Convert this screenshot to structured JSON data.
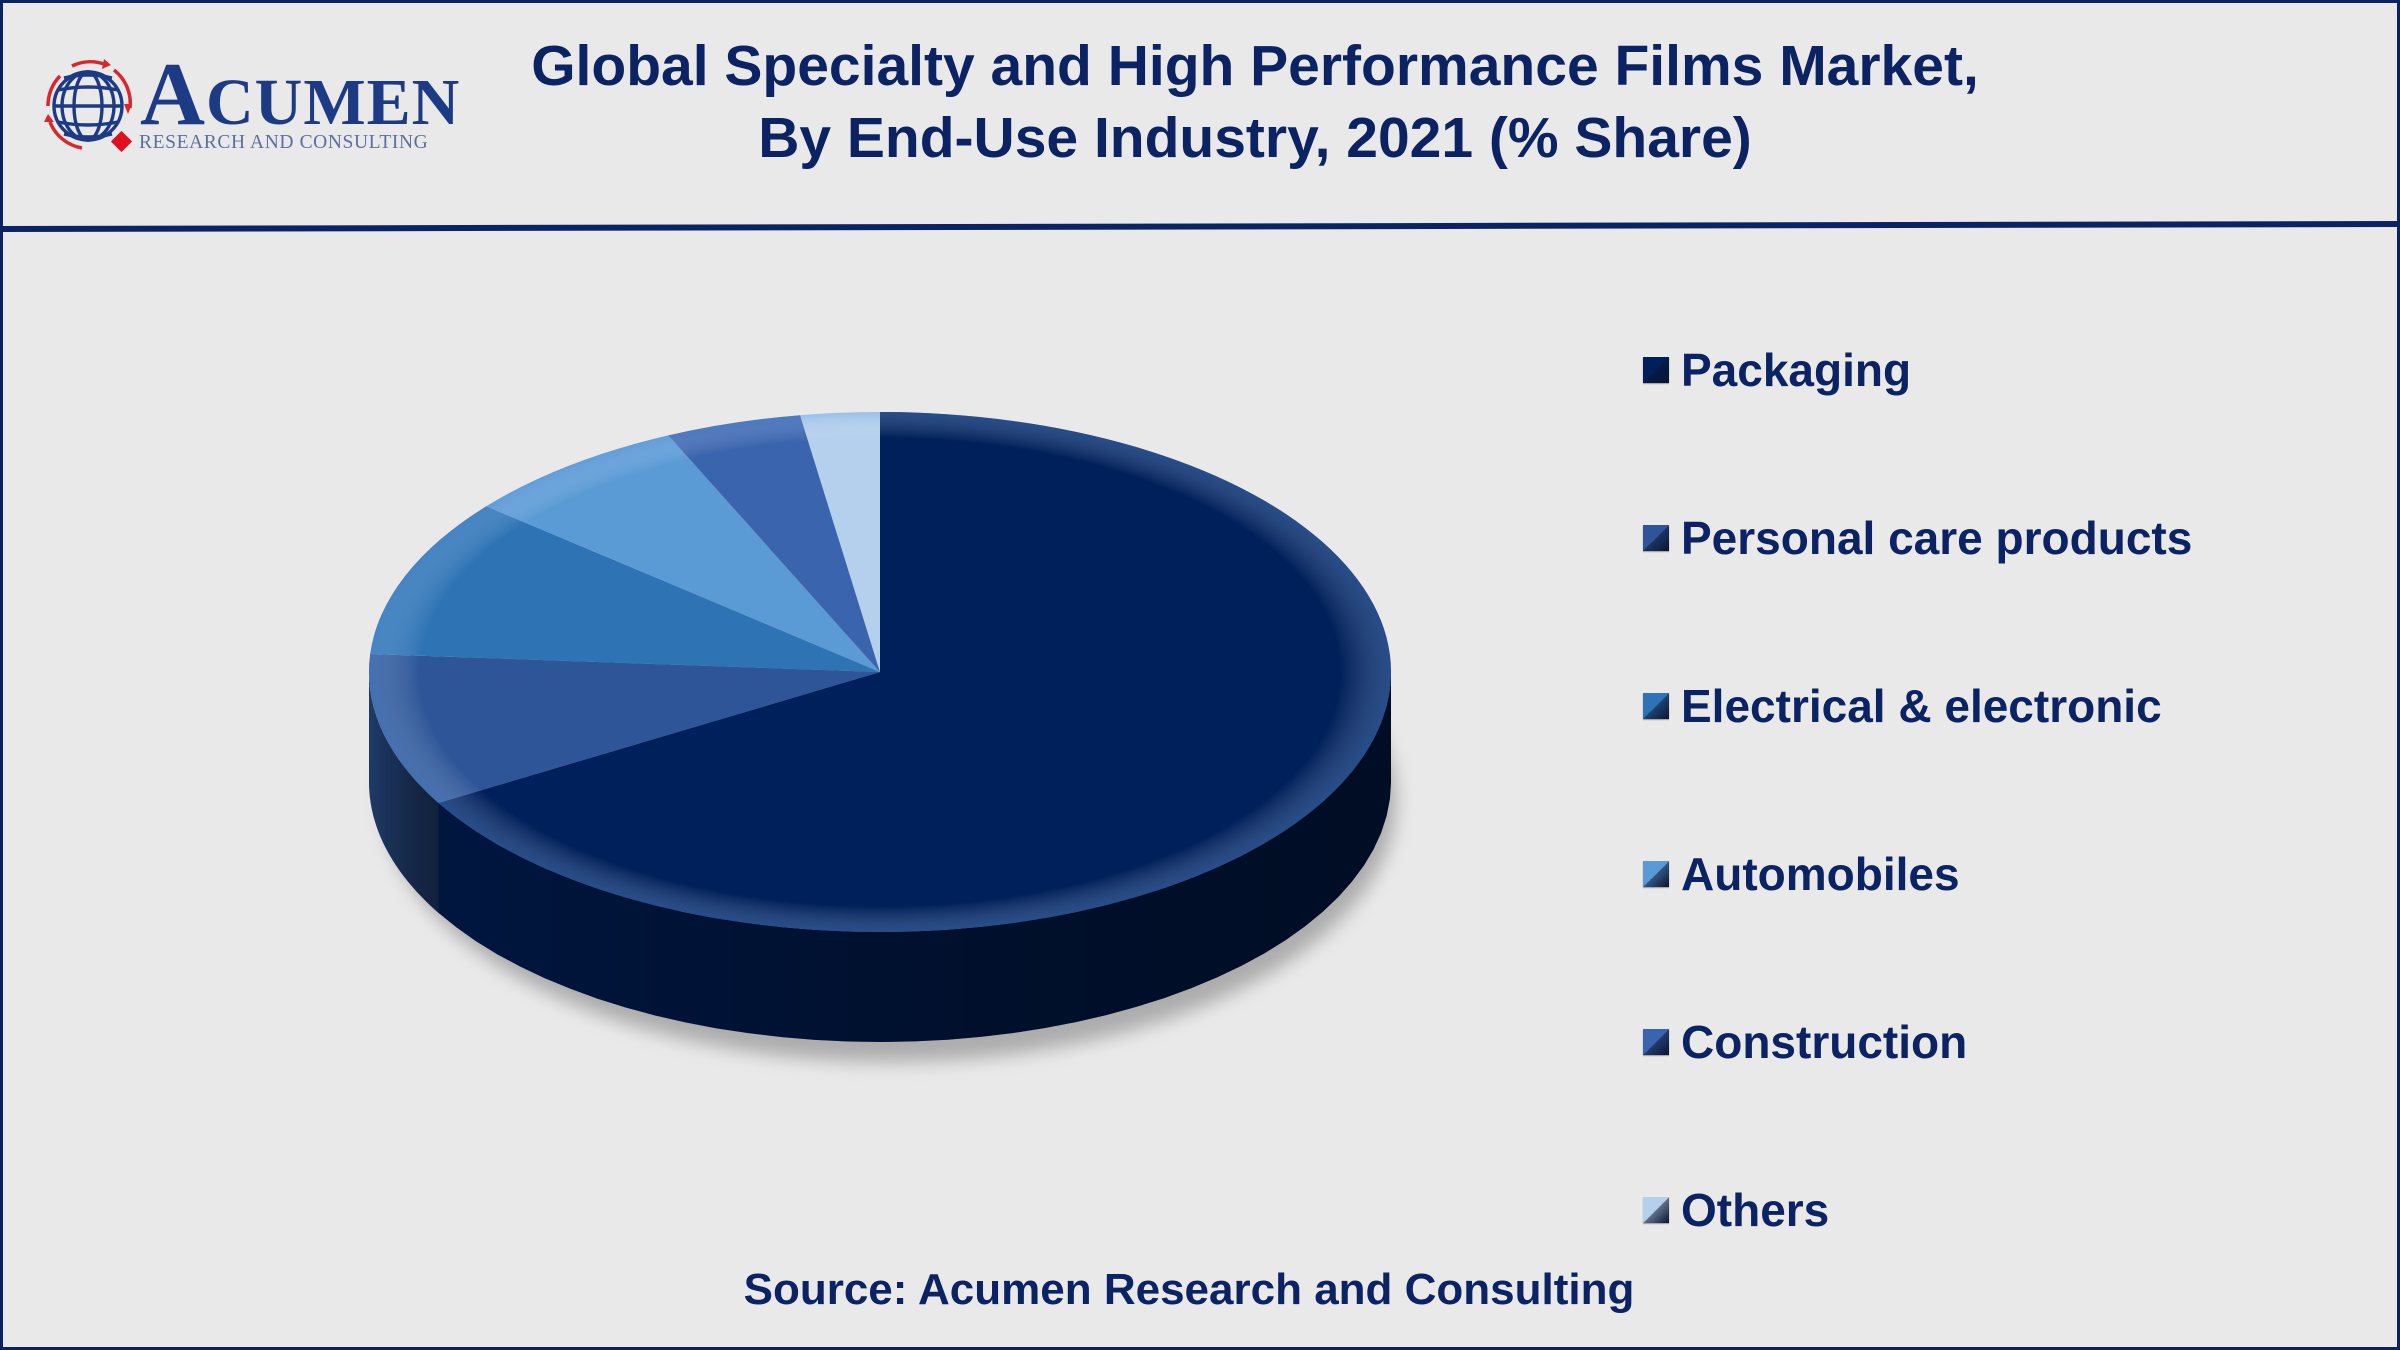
{
  "logo": {
    "name_first": "A",
    "name_rest": "CUMEN",
    "tagline": "RESEARCH AND CONSULTING",
    "colors": {
      "globe": "#1d3a84",
      "arrows": "#d8282e",
      "diamond": "#e01020"
    }
  },
  "title": {
    "line1": "Global Specialty and High Performance Films Market,",
    "line2": "By End-Use Industry, 2021 (% Share)"
  },
  "legend": {
    "items": [
      {
        "label": "Packaging",
        "color": "#00205b",
        "icon": "square-marker"
      },
      {
        "label": "Personal care products",
        "color": "#2d5597",
        "icon": "square-marker"
      },
      {
        "label": "Electrical & electronic",
        "color": "#2e74b5",
        "icon": "square-marker"
      },
      {
        "label": "Automobiles",
        "color": "#5b9bd5",
        "icon": "square-marker"
      },
      {
        "label": "Construction",
        "color": "#3a64ad",
        "icon": "square-marker"
      },
      {
        "label": "Others",
        "color": "#b4d0ec",
        "icon": "square-marker"
      }
    ]
  },
  "source": "Source: Acumen Research and Consulting",
  "colors": {
    "background": "#e9e9e9",
    "border": "#0b2263",
    "text": "#0b2263"
  },
  "chart_data": {
    "type": "pie",
    "style": "3d-pie",
    "title": "Global Specialty and High Performance Films Market, By End-Use Industry, 2021 (% Share)",
    "categories": [
      "Packaging",
      "Personal care products",
      "Electrical & electronic",
      "Automobiles",
      "Construction",
      "Others"
    ],
    "values": [
      66.6,
      9.5,
      9.9,
      7.2,
      4.3,
      2.5
    ],
    "units": "% share (estimated from slice angles; no data labels shown)",
    "colors": [
      "#00205b",
      "#2d5597",
      "#2e74b5",
      "#5b9bd5",
      "#3a64ad",
      "#b4d0ec"
    ],
    "legend_position": "right",
    "start_angle_deg": 0,
    "direction": "clockwise",
    "source": "Source: Acumen Research and Consulting"
  }
}
